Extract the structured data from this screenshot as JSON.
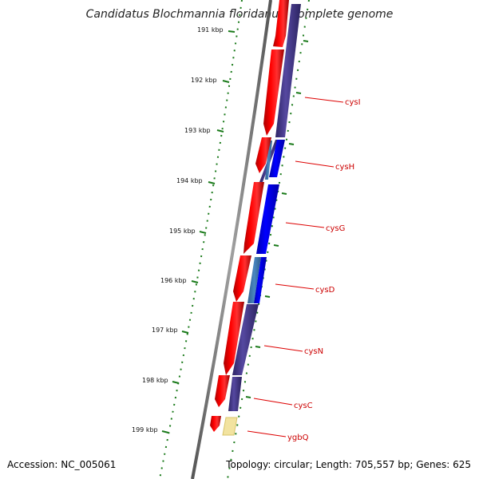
{
  "title": "Candidatus Blochmannia floridanus, complete genome",
  "ticks": [
    "191 kbp",
    "192 kbp",
    "193 kbp",
    "194 kbp",
    "195 kbp",
    "196 kbp",
    "197 kbp",
    "198 kbp",
    "199 kbp"
  ],
  "genes": [
    "cysI",
    "cysH",
    "cysG",
    "cysD",
    "cysN",
    "cysC",
    "ygbQ"
  ],
  "footer": {
    "accession_label": "Accession:",
    "accession": "NC_005061",
    "topology_label": "Topology:",
    "topology": "circular;",
    "length_label": "Length:",
    "length": "705,557 bp;",
    "genes_label": "Genes:",
    "genes": "625"
  },
  "colors": {
    "cds": "#ff0000",
    "orf": "#4b3f8f",
    "blast": "#0000ff",
    "blast_light": "#4682b4",
    "unknown": "#f2e3a0",
    "ticks": "#1a7a1a",
    "label_line": "#dd0000",
    "backbone": "#777777"
  }
}
